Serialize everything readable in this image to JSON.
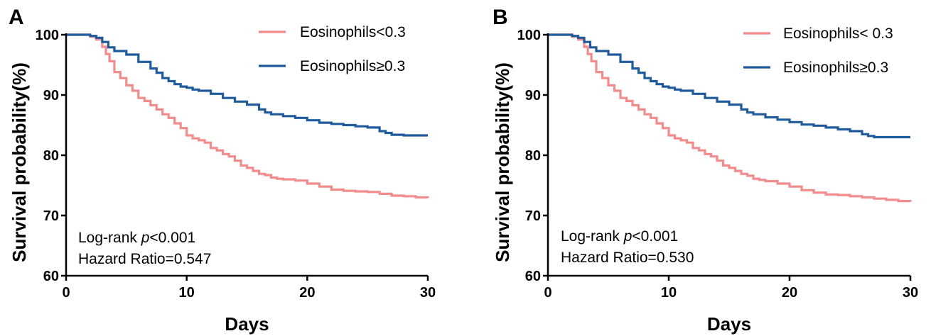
{
  "colors": {
    "low": "#f28b8b",
    "high": "#1e5a9c",
    "axis": "#000000"
  },
  "chart_data": [
    {
      "type": "line",
      "step": true,
      "panel": "A",
      "xlabel": "Days",
      "ylabel": "Survival probability(%)",
      "xlim": [
        0,
        30
      ],
      "ylim": [
        60,
        100
      ],
      "xticks": [
        "0",
        "10",
        "20",
        "30"
      ],
      "yticks": [
        "60",
        "70",
        "80",
        "90",
        "100"
      ],
      "grid": false,
      "legend_position": "top-right",
      "annotation_line1_prefix": "Log-rank ",
      "annotation_line1_italic": "p",
      "annotation_line1_suffix": "<0.001",
      "annotation_line2": "Hazard Ratio=0.547",
      "series": [
        {
          "name": "Eosinophils<0.3",
          "color_key": "low",
          "x": [
            0,
            1,
            2,
            2.5,
            3,
            3.3,
            3.6,
            4,
            4.5,
            5,
            5.5,
            6,
            6.5,
            7,
            7.5,
            8,
            8.5,
            9,
            9.5,
            10,
            10.5,
            11,
            11.5,
            12,
            12.5,
            13,
            13.5,
            14,
            14.5,
            15,
            15.5,
            16,
            16.5,
            17,
            17.5,
            18,
            19,
            20,
            21,
            22,
            23,
            24,
            25,
            26,
            27,
            28,
            29,
            30
          ],
          "y": [
            100,
            100,
            99.7,
            99.2,
            98.0,
            96.8,
            95.6,
            93.8,
            92.8,
            91.6,
            90.7,
            89.5,
            89.0,
            88.3,
            87.6,
            86.8,
            86.2,
            85.3,
            84.5,
            83.3,
            82.8,
            82.5,
            82.1,
            81.2,
            80.8,
            80.2,
            79.8,
            79.1,
            78.3,
            77.9,
            77.4,
            76.9,
            76.7,
            76.3,
            76.1,
            76.0,
            75.8,
            75.3,
            74.8,
            74.3,
            74.1,
            74.0,
            73.9,
            73.6,
            73.3,
            73.2,
            73.0,
            72.9
          ]
        },
        {
          "name": "Eosinophils≥0.3",
          "color_key": "high",
          "x": [
            0,
            1,
            2,
            2.5,
            3,
            3.5,
            4,
            5,
            6,
            7,
            7.5,
            8,
            8.5,
            9,
            9.5,
            10,
            10.5,
            11,
            12,
            13,
            14,
            15,
            16,
            16.5,
            17,
            18,
            19,
            20,
            21,
            22,
            23,
            24,
            25,
            26,
            26.5,
            27,
            28,
            29,
            30
          ],
          "y": [
            100,
            100,
            99.8,
            99.5,
            98.8,
            97.9,
            97.3,
            96.7,
            95.5,
            94.4,
            93.7,
            92.8,
            92.3,
            91.8,
            91.4,
            91.2,
            90.9,
            90.7,
            90.2,
            89.5,
            88.9,
            88.4,
            87.6,
            87.1,
            86.8,
            86.5,
            86.2,
            85.8,
            85.4,
            85.2,
            85.0,
            84.8,
            84.6,
            84.0,
            83.7,
            83.4,
            83.3,
            83.3,
            83.3
          ]
        }
      ]
    },
    {
      "type": "line",
      "step": true,
      "panel": "B",
      "xlabel": "Days",
      "ylabel": "Survival probability(%)",
      "xlim": [
        0,
        30
      ],
      "ylim": [
        60,
        100
      ],
      "xticks": [
        "0",
        "10",
        "20",
        "30"
      ],
      "yticks": [
        "60",
        "70",
        "80",
        "90",
        "100"
      ],
      "grid": false,
      "legend_position": "top-right",
      "annotation_line1_prefix": "Log-rank ",
      "annotation_line1_italic": "p",
      "annotation_line1_suffix": "<0.001",
      "annotation_line2": "Hazard Ratio=0.530",
      "series": [
        {
          "name": "Eosinophils< 0.3",
          "color_key": "low",
          "x": [
            0,
            1,
            2,
            2.5,
            3,
            3.3,
            3.6,
            4,
            4.5,
            5,
            5.5,
            6,
            6.5,
            7,
            7.5,
            8,
            8.5,
            9,
            9.5,
            10,
            10.5,
            11,
            11.5,
            12,
            12.5,
            13,
            13.5,
            14,
            14.5,
            15,
            15.5,
            16,
            16.5,
            17,
            17.5,
            18,
            19,
            20,
            21,
            22,
            23,
            24,
            25,
            26,
            27,
            28,
            29,
            30
          ],
          "y": [
            100,
            100,
            99.7,
            99.2,
            98.0,
            96.8,
            95.6,
            93.8,
            92.8,
            91.6,
            90.7,
            89.5,
            89.0,
            88.3,
            87.6,
            86.8,
            86.2,
            85.3,
            84.5,
            83.3,
            82.8,
            82.5,
            82.1,
            81.2,
            80.8,
            80.2,
            79.8,
            79.1,
            78.3,
            77.9,
            77.4,
            76.9,
            76.6,
            76.1,
            75.9,
            75.7,
            75.3,
            74.8,
            74.2,
            73.8,
            73.5,
            73.4,
            73.2,
            73.0,
            72.8,
            72.6,
            72.4,
            72.3
          ]
        },
        {
          "name": "Eosinophils≥0.3",
          "color_key": "high",
          "x": [
            0,
            1,
            2,
            2.5,
            3,
            3.5,
            4,
            5,
            6,
            7,
            7.5,
            8,
            8.5,
            9,
            9.5,
            10,
            10.5,
            11,
            12,
            13,
            14,
            15,
            16,
            16.5,
            17,
            18,
            19,
            20,
            21,
            22,
            23,
            24,
            25,
            26,
            26.5,
            27,
            28,
            29,
            30
          ],
          "y": [
            100,
            100,
            99.8,
            99.5,
            98.8,
            97.9,
            97.3,
            96.7,
            95.5,
            94.4,
            93.7,
            92.8,
            92.3,
            91.8,
            91.4,
            91.2,
            90.9,
            90.7,
            90.2,
            89.5,
            88.9,
            88.4,
            87.6,
            87.1,
            86.8,
            86.3,
            85.9,
            85.5,
            85.1,
            84.9,
            84.6,
            84.3,
            84.0,
            83.5,
            83.2,
            83.0,
            83.0,
            83.0,
            83.0
          ]
        }
      ]
    }
  ]
}
